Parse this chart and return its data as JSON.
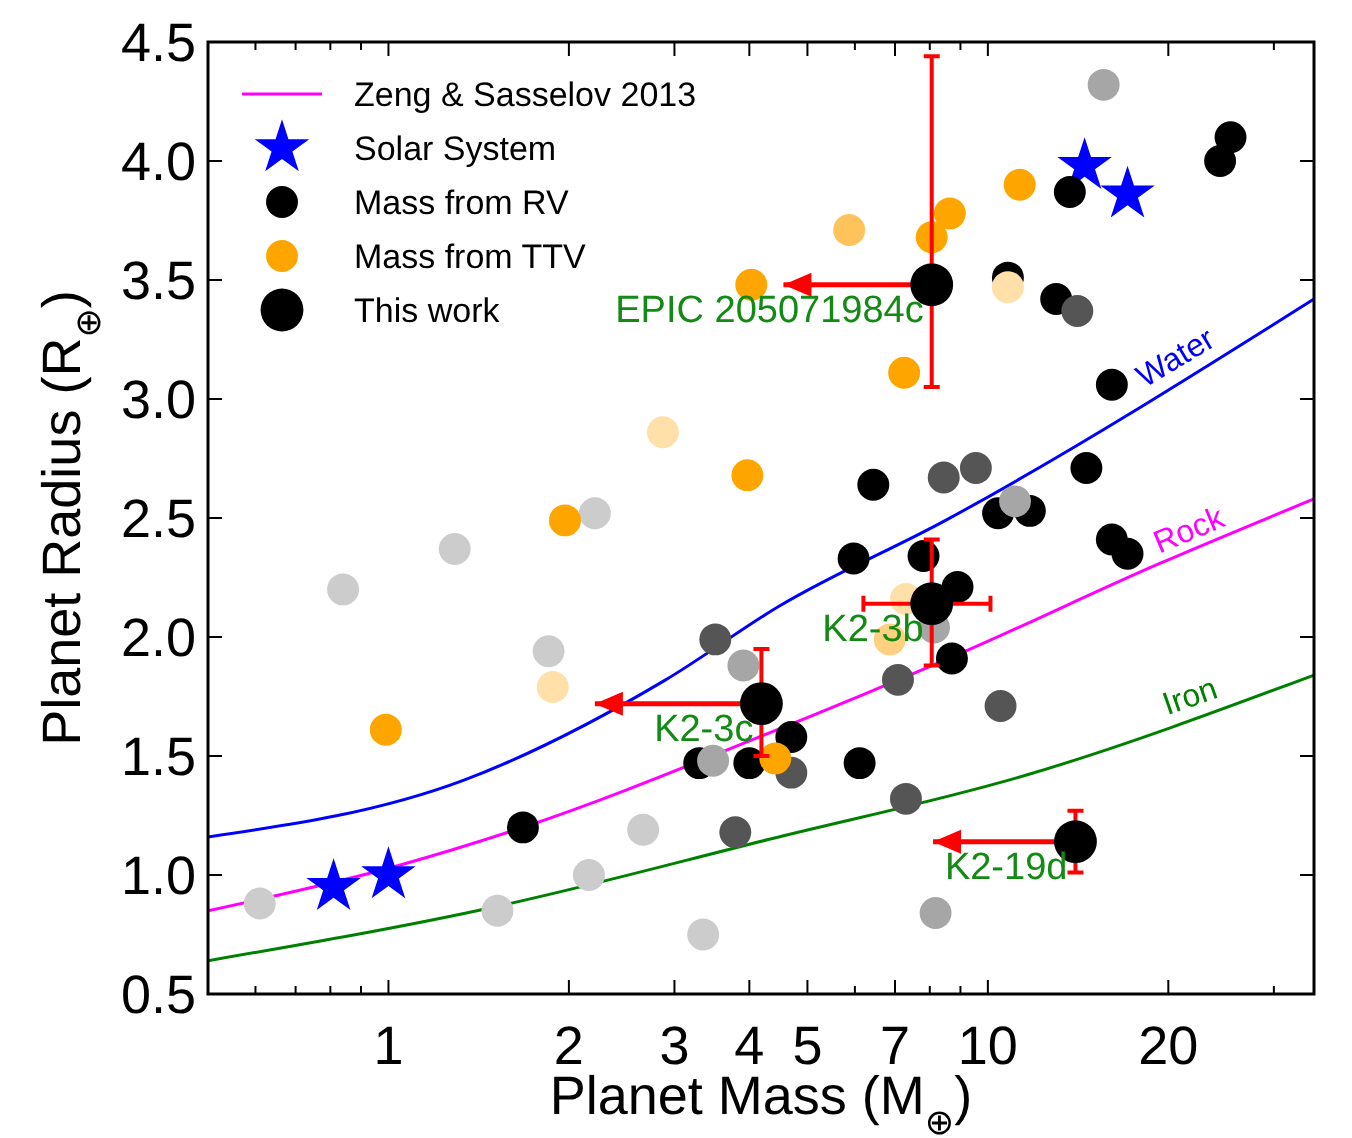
{
  "chart_data": {
    "type": "scatter",
    "xlabel": "Planet Mass (M$_{⊕}$)",
    "ylabel": "Planet Radius (R$_{⊕}$)",
    "log": "x",
    "xlim": [
      0.5,
      35
    ],
    "ylim": [
      0.5,
      4.5
    ],
    "xticks": [
      {
        "value": 0.6,
        "label": null
      },
      {
        "value": 0.7,
        "label": null
      },
      {
        "value": 0.8,
        "label": null
      },
      {
        "value": 0.9,
        "label": null
      },
      1,
      2,
      3,
      4,
      5,
      {
        "value": 6,
        "label": null
      },
      7,
      {
        "value": 8,
        "label": null
      },
      {
        "value": 9,
        "label": null
      },
      10,
      20,
      {
        "value": 30,
        "label": null
      }
    ],
    "yticks": [
      0.5,
      {
        "value": 1,
        "label": "1.0"
      },
      1.5,
      {
        "value": 2,
        "label": "2.0"
      },
      2.5,
      {
        "value": 3,
        "label": "3.0"
      },
      3.5,
      {
        "value": 4,
        "label": "4.0"
      },
      4.5
    ],
    "grid": false,
    "legend": "top left",
    "series": [
      {
        "name": "Zeng & Sasselov 2013",
        "type": "line",
        "color": "#ff00ff",
        "marker": "none",
        "x": [
          0.5,
          1.04,
          1.676,
          4.16,
          8.98,
          19.4,
          35
        ],
        "values": [
          0.85,
          1.04,
          1.2,
          1.58,
          1.93,
          2.31,
          2.58
        ]
      },
      {
        "name": "Solar System",
        "color": "#0000ff",
        "marker": "star",
        "x": [
          0.81,
          1,
          14.5,
          17.1
        ],
        "values": [
          0.95,
          1.0,
          3.98,
          3.86
        ]
      },
      {
        "type": "line",
        "color": "#0000ff",
        "marker": "none",
        "x": [
          0.5,
          1.34,
          2.9,
          4.49,
          8.5,
          35
        ],
        "values": [
          1.16,
          1.4,
          1.82,
          2.13,
          2.49,
          3.42
        ]
      },
      {
        "type": "line",
        "color": "#008000",
        "marker": "none",
        "x": [
          0.5,
          1.53,
          4.32,
          11.6,
          35
        ],
        "values": [
          0.64,
          0.87,
          1.15,
          1.42,
          1.84
        ]
      },
      {
        "name": "Mass from RV",
        "color": "#000000",
        "marker": "circle",
        "x": [
          25.4,
          24.4,
          13.7,
          10.8,
          13.0,
          16.1,
          14.6,
          6.44,
          10.4,
          11.75,
          16.1,
          17.1,
          5.97,
          7.81,
          8.9,
          8.71,
          4.7,
          6.11,
          4.0,
          3.3,
          1.676,
          14.1,
          9.55,
          8.44,
          7.08,
          10.5,
          3.51,
          4.7,
          3.79,
          7.3,
          15.6,
          3.91,
          3.48,
          8.13,
          8.18,
          11.1,
          2.21,
          0.84,
          1.29,
          1.85,
          2.66,
          2.16,
          1.52,
          3.35,
          0.61
        ],
        "values": [
          4.1,
          4.0,
          3.87,
          3.51,
          3.42,
          3.06,
          2.71,
          2.64,
          2.52,
          2.53,
          2.41,
          2.35,
          2.33,
          2.34,
          2.21,
          1.91,
          1.58,
          1.47,
          1.47,
          1.47,
          1.2,
          3.37,
          2.71,
          2.67,
          1.82,
          1.71,
          1.99,
          1.43,
          1.18,
          1.32,
          4.32,
          1.88,
          1.48,
          2.04,
          0.84,
          2.57,
          2.52,
          2.2,
          2.37,
          1.94,
          1.19,
          1.0,
          0.85,
          0.75,
          0.88
        ],
        "colors": [
          "#000000",
          "#000000",
          "#000000",
          "#000000",
          "#000000",
          "#000000",
          "#000000",
          "#000000",
          "#000000",
          "#000000",
          "#000000",
          "#000000",
          "#000000",
          "#000000",
          "#000000",
          "#000000",
          "#000000",
          "#000000",
          "#000000",
          "#000000",
          "#000000",
          "#555555",
          "#555555",
          "#555555",
          "#555555",
          "#555555",
          "#555555",
          "#555555",
          "#555555",
          "#555555",
          "#a6a6a6",
          "#a6a6a6",
          "#a6a6a6",
          "#a6a6a6",
          "#a6a6a6",
          "#a6a6a6",
          "#cccccc",
          "#cccccc",
          "#cccccc",
          "#cccccc",
          "#cccccc",
          "#cccccc",
          "#cccccc",
          "#cccccc",
          "#cccccc"
        ]
      },
      {
        "name": "Mass from TTV",
        "color": "#ffa500",
        "marker": "circle",
        "x": [
          4.03,
          3.97,
          1.97,
          11.3,
          8.64,
          8.06,
          7.25,
          0.99,
          4.42,
          2.87,
          5.87,
          10.8,
          7.3,
          6.86,
          1.88
        ],
        "values": [
          3.48,
          2.68,
          2.49,
          3.9,
          3.78,
          3.68,
          3.11,
          1.61,
          1.49,
          2.86,
          3.71,
          3.47,
          2.16,
          1.99,
          1.79
        ],
        "colors": [
          "#ffa500",
          "#ffa500",
          "#ffa500",
          "#ffa500",
          "#ffa500",
          "#ffa500",
          "#ffa500",
          "#ffa500",
          "#ffa500",
          "#ffe0a8",
          "#ffc35c",
          "#ffe0a8",
          "#ffe0a8",
          "#ffd080",
          "#ffe0a8"
        ]
      },
      {
        "name": "This work",
        "color": "#000000",
        "marker": "circle",
        "x": [
          8.06,
          8.06,
          4.19,
          14.0
        ],
        "values": [
          3.48,
          2.14,
          1.72,
          1.14
        ],
        "errors": [
          [
            3.05,
            4.44
          ],
          [
            1.88,
            2.41
          ],
          [
            1.5,
            1.95
          ],
          [
            1.01,
            1.27
          ]
        ],
        "xerrors": [
          [
            4.56,
            8.06
          ],
          [
            6.2,
            10.1
          ],
          [
            2.21,
            4.19
          ],
          [
            8.1,
            14.0
          ]
        ]
      }
    ],
    "annotations": [
      {
        "text": "EPIC 205071984c",
        "x": 8.06,
        "y": 3.48
      },
      {
        "text": "K2-3b",
        "x": 8.06,
        "y": 2.14
      },
      {
        "text": "K2-3c",
        "x": 4.19,
        "y": 1.72
      },
      {
        "text": "K2-19d",
        "x": 14.0,
        "y": 1.14
      },
      {
        "text": "Water",
        "x": 21.4,
        "y": 3.1
      },
      {
        "text": "Rock",
        "x": 22.3,
        "y": 2.37
      },
      {
        "text": "Iron",
        "x": 22.3,
        "y": 1.67
      }
    ]
  }
}
